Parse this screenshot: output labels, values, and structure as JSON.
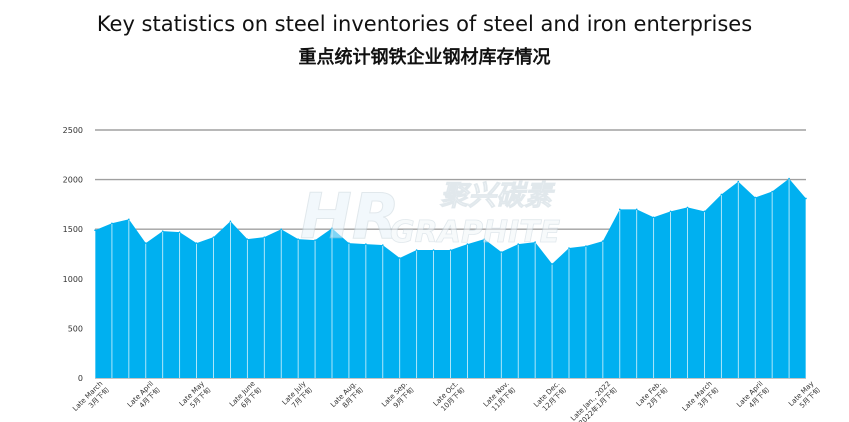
{
  "chart_data": {
    "type": "area",
    "title": "Key statistics on steel inventories of steel and iron enterprises",
    "subtitle": "重点统计钢铁企业钢材库存情况",
    "ylim": [
      0,
      2500
    ],
    "yticks": [
      0,
      500,
      1000,
      1500,
      2000,
      2500
    ],
    "grid": true,
    "color": "#00b0f0",
    "values": [
      1490,
      1560,
      1600,
      1360,
      1480,
      1470,
      1360,
      1420,
      1580,
      1400,
      1420,
      1500,
      1400,
      1390,
      1510,
      1360,
      1350,
      1340,
      1210,
      1290,
      1290,
      1290,
      1350,
      1400,
      1270,
      1350,
      1370,
      1150,
      1310,
      1330,
      1380,
      1700,
      1700,
      1620,
      1680,
      1720,
      1680,
      1850,
      1980,
      1820,
      1880,
      2010,
      1810
    ],
    "x_labels": [
      {
        "en": "Late March",
        "zh": "3月下旬"
      },
      {
        "en": "Late April",
        "zh": "4月下旬"
      },
      {
        "en": "Late May",
        "zh": "5月下旬"
      },
      {
        "en": "Late June",
        "zh": "6月下旬"
      },
      {
        "en": "Late July",
        "zh": "7月下旬"
      },
      {
        "en": "Late Aug.",
        "zh": "8月下旬"
      },
      {
        "en": "Late Sep.",
        "zh": "9月下旬"
      },
      {
        "en": "Late Oct.",
        "zh": "10月下旬"
      },
      {
        "en": "Late Nov.",
        "zh": "11月下旬"
      },
      {
        "en": "Late Dec.",
        "zh": "12月下旬"
      },
      {
        "en": "Late Jan., 2022",
        "zh": "2022年1月下旬"
      },
      {
        "en": "Late Feb.",
        "zh": "2月下旬"
      },
      {
        "en": "Late March",
        "zh": "3月下旬"
      },
      {
        "en": "Late April",
        "zh": "4月下旬"
      },
      {
        "en": "Late May",
        "zh": "5月下旬"
      }
    ],
    "x_label_positions": [
      0,
      3,
      6,
      9,
      12,
      15,
      18,
      21,
      24,
      27,
      30,
      33,
      36,
      39,
      42
    ]
  },
  "watermark": {
    "logo": "HR",
    "name_zh": "聚兴碳素",
    "name_en": "GRAPHITE"
  }
}
